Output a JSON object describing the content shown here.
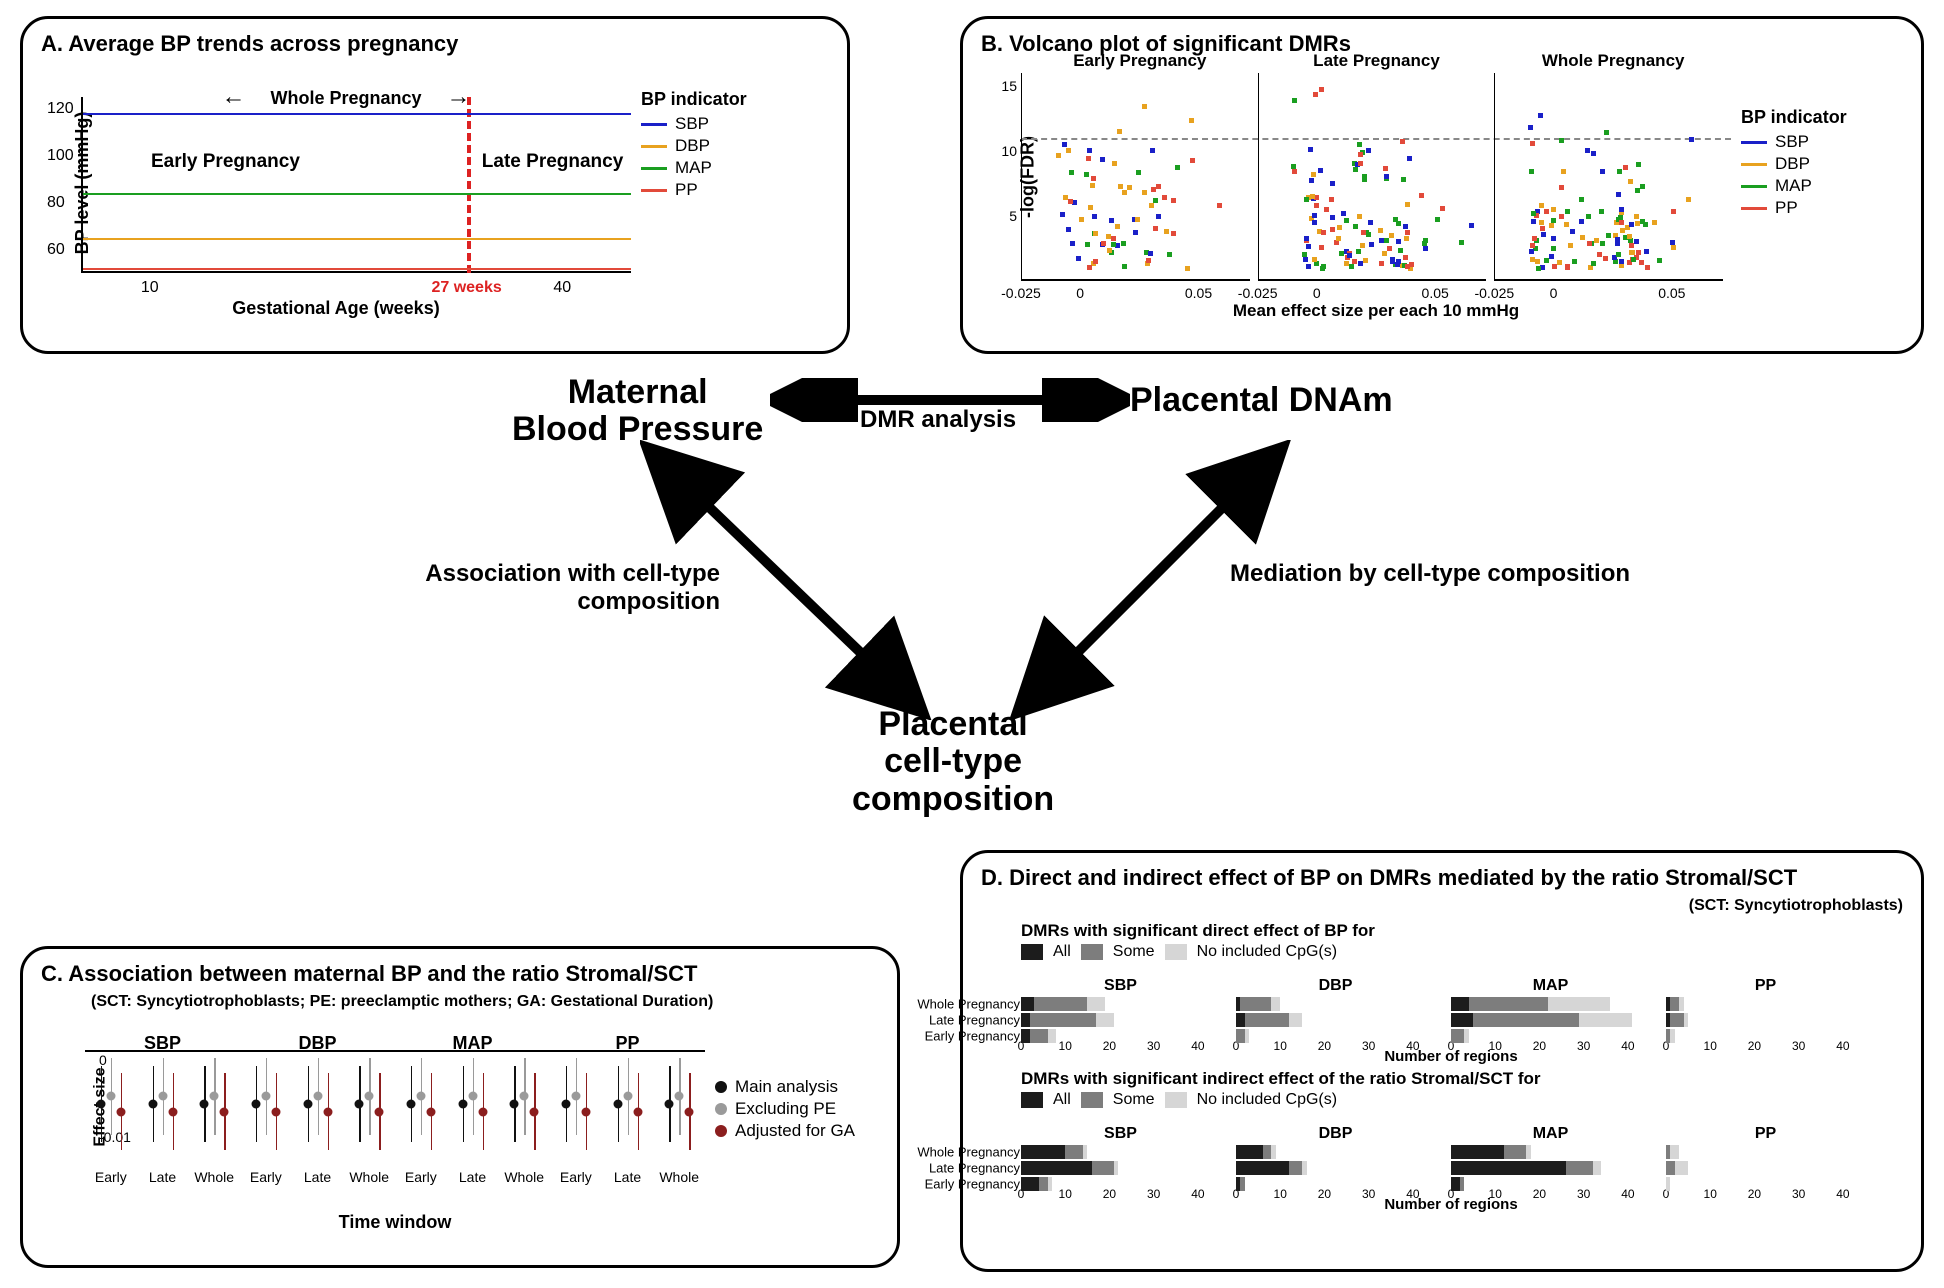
{
  "colors": {
    "sbp": "#1a20c8",
    "dbp": "#e8a21f",
    "map": "#1a9e20",
    "pp": "#e24a3a",
    "main": "#111111",
    "excl": "#9a9a9a",
    "adj": "#8b1e1e",
    "all": "#1c1c1c",
    "some": "#7d7d7d",
    "none": "#d6d6d6"
  },
  "center": {
    "maternal": "Maternal\nBlood Pressure",
    "dnam": "Placental DNAm",
    "cell": "Placental\ncell-type\ncomposition",
    "edge_top": "DMR analysis",
    "edge_left": "Association with cell-type composition",
    "edge_right": "Mediation by cell-type composition"
  },
  "panelA": {
    "title": "A. Average BP trends across pregnancy",
    "ylab": "BP level (mmHg)",
    "xlab": "Gestational Age (weeks)",
    "yticks": [
      60,
      80,
      100,
      120
    ],
    "xticks": [
      10,
      40
    ],
    "divider_label": "27 weeks",
    "whole_label": "Whole Pregnancy",
    "early_label": "Early Pregnancy",
    "late_label": "Late Pregnancy",
    "legend_title": "BP indicator",
    "lines": {
      "SBP": 118,
      "MAP": 84,
      "DBP": 65,
      "PP": 52
    }
  },
  "panelB": {
    "title": "B. Volcano plot of significant DMRs",
    "ylab": "-log(FDR)",
    "xlab": "Mean effect size per each 10 mmHg",
    "sub_titles": [
      "Early Pregnancy",
      "Late Pregnancy",
      "Whole Pregnancy"
    ],
    "legend_title": "BP indicator",
    "xticks": [
      "-0.025",
      "0",
      "0.05"
    ],
    "yticks": [
      5,
      10,
      15
    ],
    "dash_y": 11
  },
  "panelC": {
    "title": "C. Association between maternal BP and the ratio Stromal/SCT",
    "sub": "(SCT: Syncytiotrophoblasts; PE: preeclamptic mothers; GA: Gestational Duration)",
    "ylab": "Effect size",
    "xlab": "Time window",
    "yticks": [
      "0",
      "-0.01"
    ],
    "cols": [
      "SBP",
      "DBP",
      "MAP",
      "PP"
    ],
    "xticks": [
      "Early",
      "Late",
      "Whole"
    ],
    "legend": [
      {
        "label": "Main analysis",
        "color": "main"
      },
      {
        "label": "Excluding PE",
        "color": "excl"
      },
      {
        "label": "Adjusted for GA",
        "color": "adj"
      }
    ]
  },
  "panelD": {
    "title": "D. Direct and indirect effect of BP on DMRs mediated by the ratio Stromal/SCT",
    "sub": "(SCT: Syncytiotrophoblasts)",
    "row1_title": "DMRs with significant direct effect of BP for",
    "row2_title": "DMRs with significant indirect effect of the ratio Stromal/SCT for",
    "legend": [
      {
        "label": "All",
        "color": "all"
      },
      {
        "label": "Some",
        "color": "some"
      },
      {
        "label": "No included CpG(s)",
        "color": "none"
      }
    ],
    "cols": [
      "SBP",
      "DBP",
      "MAP",
      "PP"
    ],
    "rows": [
      "Whole Pregnancy",
      "Late Pregnancy",
      "Early Pregnancy"
    ],
    "xmax": 45,
    "xticks": [
      0,
      10,
      20,
      30,
      40
    ],
    "xlab": "Number of regions",
    "direct": {
      "SBP": {
        "Whole": [
          3,
          12,
          4
        ],
        "Late": [
          2,
          15,
          4
        ],
        "Early": [
          2,
          4,
          2
        ]
      },
      "DBP": {
        "Whole": [
          1,
          7,
          2
        ],
        "Late": [
          2,
          10,
          3
        ],
        "Early": [
          0,
          2,
          1
        ]
      },
      "MAP": {
        "Whole": [
          4,
          18,
          14
        ],
        "Late": [
          5,
          24,
          12
        ],
        "Early": [
          0,
          3,
          1
        ]
      },
      "PP": {
        "Whole": [
          1,
          2,
          1
        ],
        "Late": [
          1,
          3,
          1
        ],
        "Early": [
          0,
          1,
          1
        ]
      }
    },
    "indirect": {
      "SBP": {
        "Whole": [
          10,
          4,
          1
        ],
        "Late": [
          16,
          5,
          1
        ],
        "Early": [
          4,
          2,
          1
        ]
      },
      "DBP": {
        "Whole": [
          6,
          2,
          1
        ],
        "Late": [
          12,
          3,
          1
        ],
        "Early": [
          1,
          1,
          0
        ]
      },
      "MAP": {
        "Whole": [
          12,
          5,
          1
        ],
        "Late": [
          26,
          6,
          2
        ],
        "Early": [
          2,
          1,
          0
        ]
      },
      "PP": {
        "Whole": [
          0,
          1,
          2
        ],
        "Late": [
          0,
          2,
          3
        ],
        "Early": [
          0,
          0,
          1
        ]
      }
    }
  }
}
